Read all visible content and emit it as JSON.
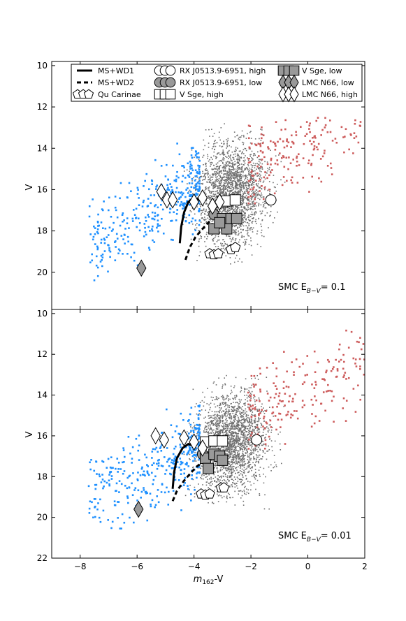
{
  "figure": {
    "xlabel_main": "m",
    "xlabel_sub": "162",
    "xlabel_suffix": "-V",
    "ylabel": "V"
  },
  "colors": {
    "blue": "#1e90ff",
    "red": "#cd5c5c",
    "gray": "#6e6e6e",
    "marker_gray": "#999999"
  },
  "legend": {
    "ms_wd1": "MS+WD1",
    "ms_wd2": "MS+WD2",
    "qu_car": "Qu Carinae",
    "rxj_high": "RX J0513.9-6951, high",
    "rxj_low": "RX J0513.9-6951, low",
    "vsge_high": "V Sge, high",
    "vsge_low": "V Sge, low",
    "lmc_low": "LMC N66, low",
    "lmc_high": "LMC N66, high"
  },
  "chart_data": [
    {
      "type": "scatter",
      "panel": "top",
      "annotation_main": "SMC E",
      "annotation_sub": "B−V",
      "annotation_value": "= 0.1",
      "xlim": [
        -9,
        2
      ],
      "ylim": [
        21.8,
        9.8
      ],
      "xticks": [
        -8,
        -6,
        -4,
        -2,
        0,
        2
      ],
      "yticks": [
        10,
        12,
        14,
        16,
        18,
        20
      ],
      "show_xticklabels": false,
      "legend_position": "top",
      "field_stars": {
        "blue": {
          "x_range": [
            -7.7,
            -3.8
          ],
          "y_range": [
            13.6,
            20.5
          ]
        },
        "gray": {
          "x_range": [
            -4.2,
            -1.2
          ],
          "y_range": [
            12.8,
            19.6
          ]
        },
        "red": {
          "x_range": [
            -2.1,
            2.0
          ],
          "y_range": [
            12.5,
            17.0
          ]
        }
      },
      "series": [
        {
          "name": "MS+WD1",
          "style": "solid",
          "x": [
            -4.5,
            -4.45,
            -4.35,
            -4.2,
            -4.0,
            -3.8
          ],
          "y": [
            18.6,
            17.8,
            17.1,
            16.6,
            16.4,
            16.5
          ]
        },
        {
          "name": "MS+WD2",
          "style": "dashed",
          "x": [
            -4.3,
            -4.15,
            -3.95,
            -3.7,
            -3.5,
            -3.35
          ],
          "y": [
            19.4,
            18.8,
            18.3,
            17.9,
            17.6,
            17.4
          ]
        },
        {
          "name": "Qu Carinae",
          "marker": "pentagon",
          "x": [
            -3.45,
            -3.3,
            -3.15,
            -2.7,
            -2.55
          ],
          "y": [
            19.1,
            19.15,
            19.1,
            18.9,
            18.8
          ]
        },
        {
          "name": "RX J0513.9-6951, high",
          "marker": "circle-open",
          "x": [
            -1.3
          ],
          "y": [
            16.5
          ]
        },
        {
          "name": "RX J0513.9-6951, low",
          "marker": "circle-gray",
          "x": [
            -3.3
          ],
          "y": [
            17.2
          ]
        },
        {
          "name": "V Sge, high",
          "marker": "square-open",
          "x": [
            -3.0,
            -2.85,
            -2.55
          ],
          "y": [
            16.6,
            16.55,
            16.5
          ]
        },
        {
          "name": "V Sge, low",
          "marker": "square-gray",
          "x": [
            -3.3,
            -3.0,
            -2.7,
            -2.85,
            -2.5,
            -3.1
          ],
          "y": [
            17.9,
            17.4,
            17.4,
            17.9,
            17.4,
            17.6
          ]
        },
        {
          "name": "LMC N66, low",
          "marker": "diamond-gray",
          "x": [
            -5.85
          ],
          "y": [
            19.8
          ]
        },
        {
          "name": "LMC N66, high",
          "marker": "diamond-open",
          "x": [
            -5.15,
            -4.95,
            -4.75,
            -4.0,
            -3.7,
            -3.35,
            -3.1
          ],
          "y": [
            16.1,
            16.5,
            16.5,
            16.6,
            16.4,
            16.8,
            16.6
          ]
        }
      ]
    },
    {
      "type": "scatter",
      "panel": "bottom",
      "annotation_main": "SMC E",
      "annotation_sub": "B−V",
      "annotation_value": "= 0.01",
      "xlim": [
        -9,
        2
      ],
      "ylim": [
        22,
        9.8
      ],
      "xticks": [
        -8,
        -6,
        -4,
        -2,
        0,
        2
      ],
      "xticklabels": [
        "−8",
        "−6",
        "−4",
        "−2",
        "0",
        "2"
      ],
      "yticks": [
        10,
        12,
        14,
        16,
        18,
        20,
        22
      ],
      "show_xticklabels": true,
      "legend_position": "none",
      "field_stars": {
        "blue": {
          "x_range": [
            -7.7,
            -3.8
          ],
          "y_range": [
            14.2,
            20.6
          ]
        },
        "gray": {
          "x_range": [
            -4.2,
            -1.2
          ],
          "y_range": [
            13.0,
            19.6
          ]
        },
        "red": {
          "x_range": [
            -2.1,
            2.0
          ],
          "y_range": [
            10.5,
            16.8
          ]
        }
      },
      "series": [
        {
          "name": "MS+WD1",
          "style": "solid",
          "x": [
            -4.75,
            -4.7,
            -4.6,
            -4.4,
            -4.2,
            -4.0
          ],
          "y": [
            18.6,
            17.8,
            17.1,
            16.6,
            16.4,
            16.5
          ]
        },
        {
          "name": "MS+WD2",
          "style": "dashed",
          "x": [
            -4.75,
            -4.6,
            -4.35,
            -4.1,
            -3.9,
            -3.7
          ],
          "y": [
            19.2,
            18.7,
            18.2,
            17.8,
            17.5,
            17.3
          ]
        },
        {
          "name": "Qu Carinae",
          "marker": "pentagon",
          "x": [
            -3.75,
            -3.6,
            -3.45,
            -3.05,
            -2.95
          ],
          "y": [
            18.85,
            18.9,
            18.85,
            18.55,
            18.55
          ]
        },
        {
          "name": "RX J0513.9-6951, high",
          "marker": "circle-open",
          "x": [
            -1.8
          ],
          "y": [
            16.2
          ]
        },
        {
          "name": "RX J0513.9-6951, low",
          "marker": "circle-gray",
          "x": [
            -3.7
          ],
          "y": [
            16.9
          ]
        },
        {
          "name": "V Sge, high",
          "marker": "square-open",
          "x": [
            -3.6,
            -3.3,
            -3.0
          ],
          "y": [
            16.3,
            16.25,
            16.25
          ]
        },
        {
          "name": "V Sge, low",
          "marker": "square-gray",
          "x": [
            -3.6,
            -3.3,
            -3.1,
            -3.5,
            -3.0
          ],
          "y": [
            17.1,
            16.9,
            17.0,
            17.6,
            17.2
          ]
        },
        {
          "name": "LMC N66, low",
          "marker": "diamond-gray",
          "x": [
            -5.95
          ],
          "y": [
            19.6
          ]
        },
        {
          "name": "LMC N66, high",
          "marker": "diamond-open",
          "x": [
            -5.35,
            -5.05,
            -4.35,
            -4.0,
            -3.7
          ],
          "y": [
            16.0,
            16.2,
            16.1,
            16.3,
            16.6
          ]
        }
      ]
    }
  ]
}
